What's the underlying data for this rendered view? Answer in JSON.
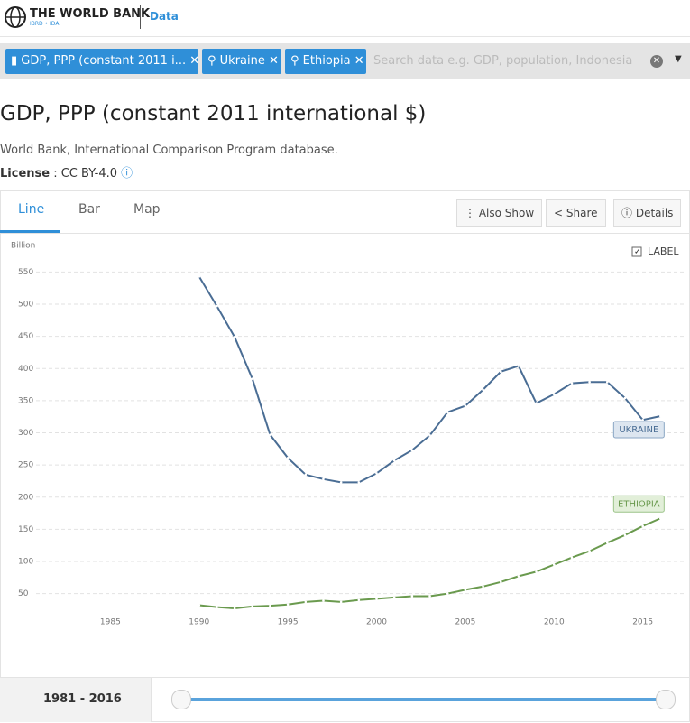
{
  "header": {
    "brand": "THE WORLD BANK",
    "brand_sub": "IBRD • IDA",
    "section": "Data"
  },
  "filters": {
    "chips": [
      "GDP, PPP (constant 2011 i...",
      "Ukraine",
      "Ethiopia"
    ],
    "search_placeholder": "Search data e.g. GDP, population, Indonesia"
  },
  "page": {
    "title": "GDP, PPP (constant 2011 international $)",
    "source": "World Bank, International Comparison Program database.",
    "license_label": "License",
    "license_value": ": CC BY-4.0"
  },
  "tabs": [
    "Line",
    "Bar",
    "Map"
  ],
  "actions": [
    "Also Show",
    "Share",
    "Details"
  ],
  "range": {
    "start": "1981",
    "sep": "-",
    "end": "2016"
  },
  "chart_data": {
    "type": "line",
    "y_label": "Billion",
    "label_toggle": "LABEL",
    "x": [
      1990,
      1991,
      1992,
      1993,
      1994,
      1995,
      1996,
      1997,
      1998,
      1999,
      2000,
      2001,
      2002,
      2003,
      2004,
      2005,
      2006,
      2007,
      2008,
      2009,
      2010,
      2011,
      2012,
      2013,
      2014,
      2015,
      2016
    ],
    "series": [
      {
        "name": "UKRAINE",
        "color": "#4a6d94",
        "values": [
          543,
          497,
          449,
          384,
          297,
          261,
          235,
          228,
          223,
          223,
          237,
          257,
          273,
          296,
          332,
          342,
          367,
          395,
          404,
          346,
          360,
          377,
          379,
          379,
          354,
          320,
          326
        ]
      },
      {
        "name": "ETHIOPIA",
        "color": "#6a9a4e",
        "values": [
          32,
          29,
          27,
          30,
          31,
          33,
          37,
          39,
          37,
          40,
          42,
          44,
          46,
          46,
          50,
          56,
          61,
          68,
          77,
          84,
          95,
          106,
          116,
          129,
          141,
          155,
          167
        ]
      }
    ],
    "xlim": [
      1980,
      2017
    ],
    "ylim": [
      20,
      580
    ],
    "xticks": [
      1985,
      1990,
      1995,
      2000,
      2005,
      2010,
      2015
    ],
    "yticks": [
      50,
      100,
      150,
      200,
      250,
      300,
      350,
      400,
      450,
      500,
      550
    ],
    "grid": true
  }
}
